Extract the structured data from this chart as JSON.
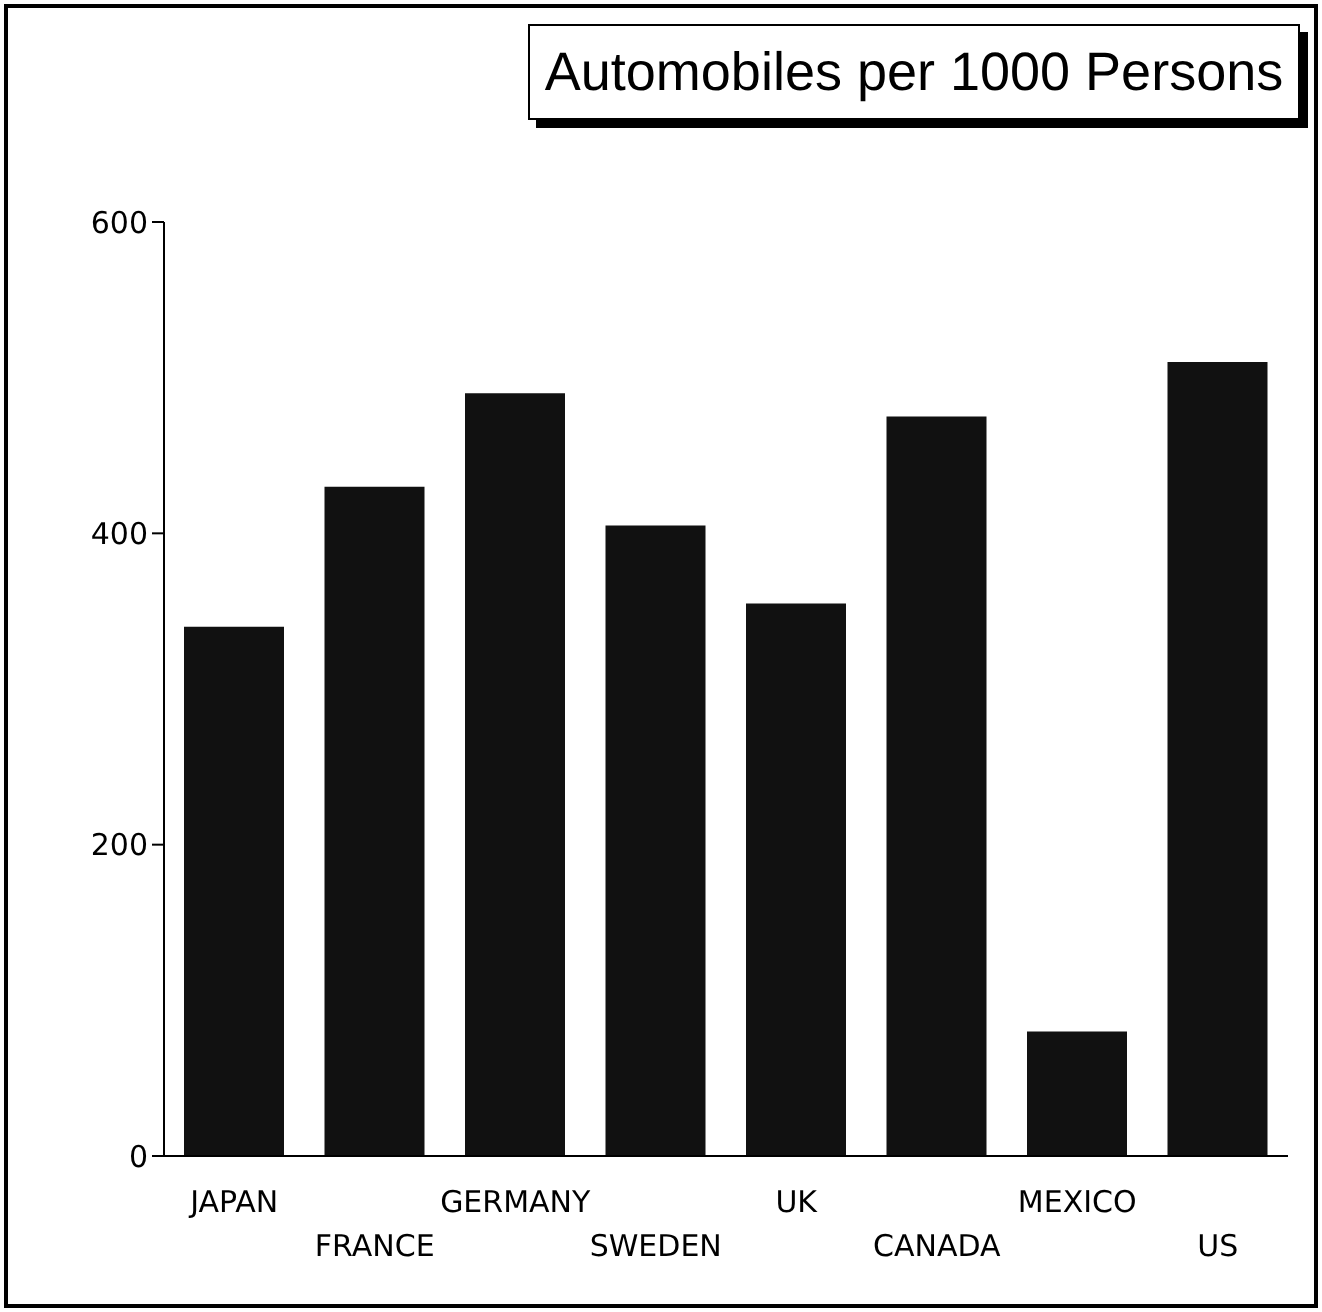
{
  "chart_data": {
    "type": "bar",
    "title": "Automobiles per 1000 Persons",
    "categories": [
      "JAPAN",
      "FRANCE",
      "GERMANY",
      "SWEDEN",
      "UK",
      "CANADA",
      "MEXICO",
      "US"
    ],
    "values": [
      340,
      430,
      490,
      405,
      355,
      475,
      80,
      510
    ],
    "color": "#111111",
    "ylim": [
      0,
      600
    ],
    "yticks": [
      0,
      200,
      400,
      600
    ],
    "grid": false,
    "legend": false
  }
}
